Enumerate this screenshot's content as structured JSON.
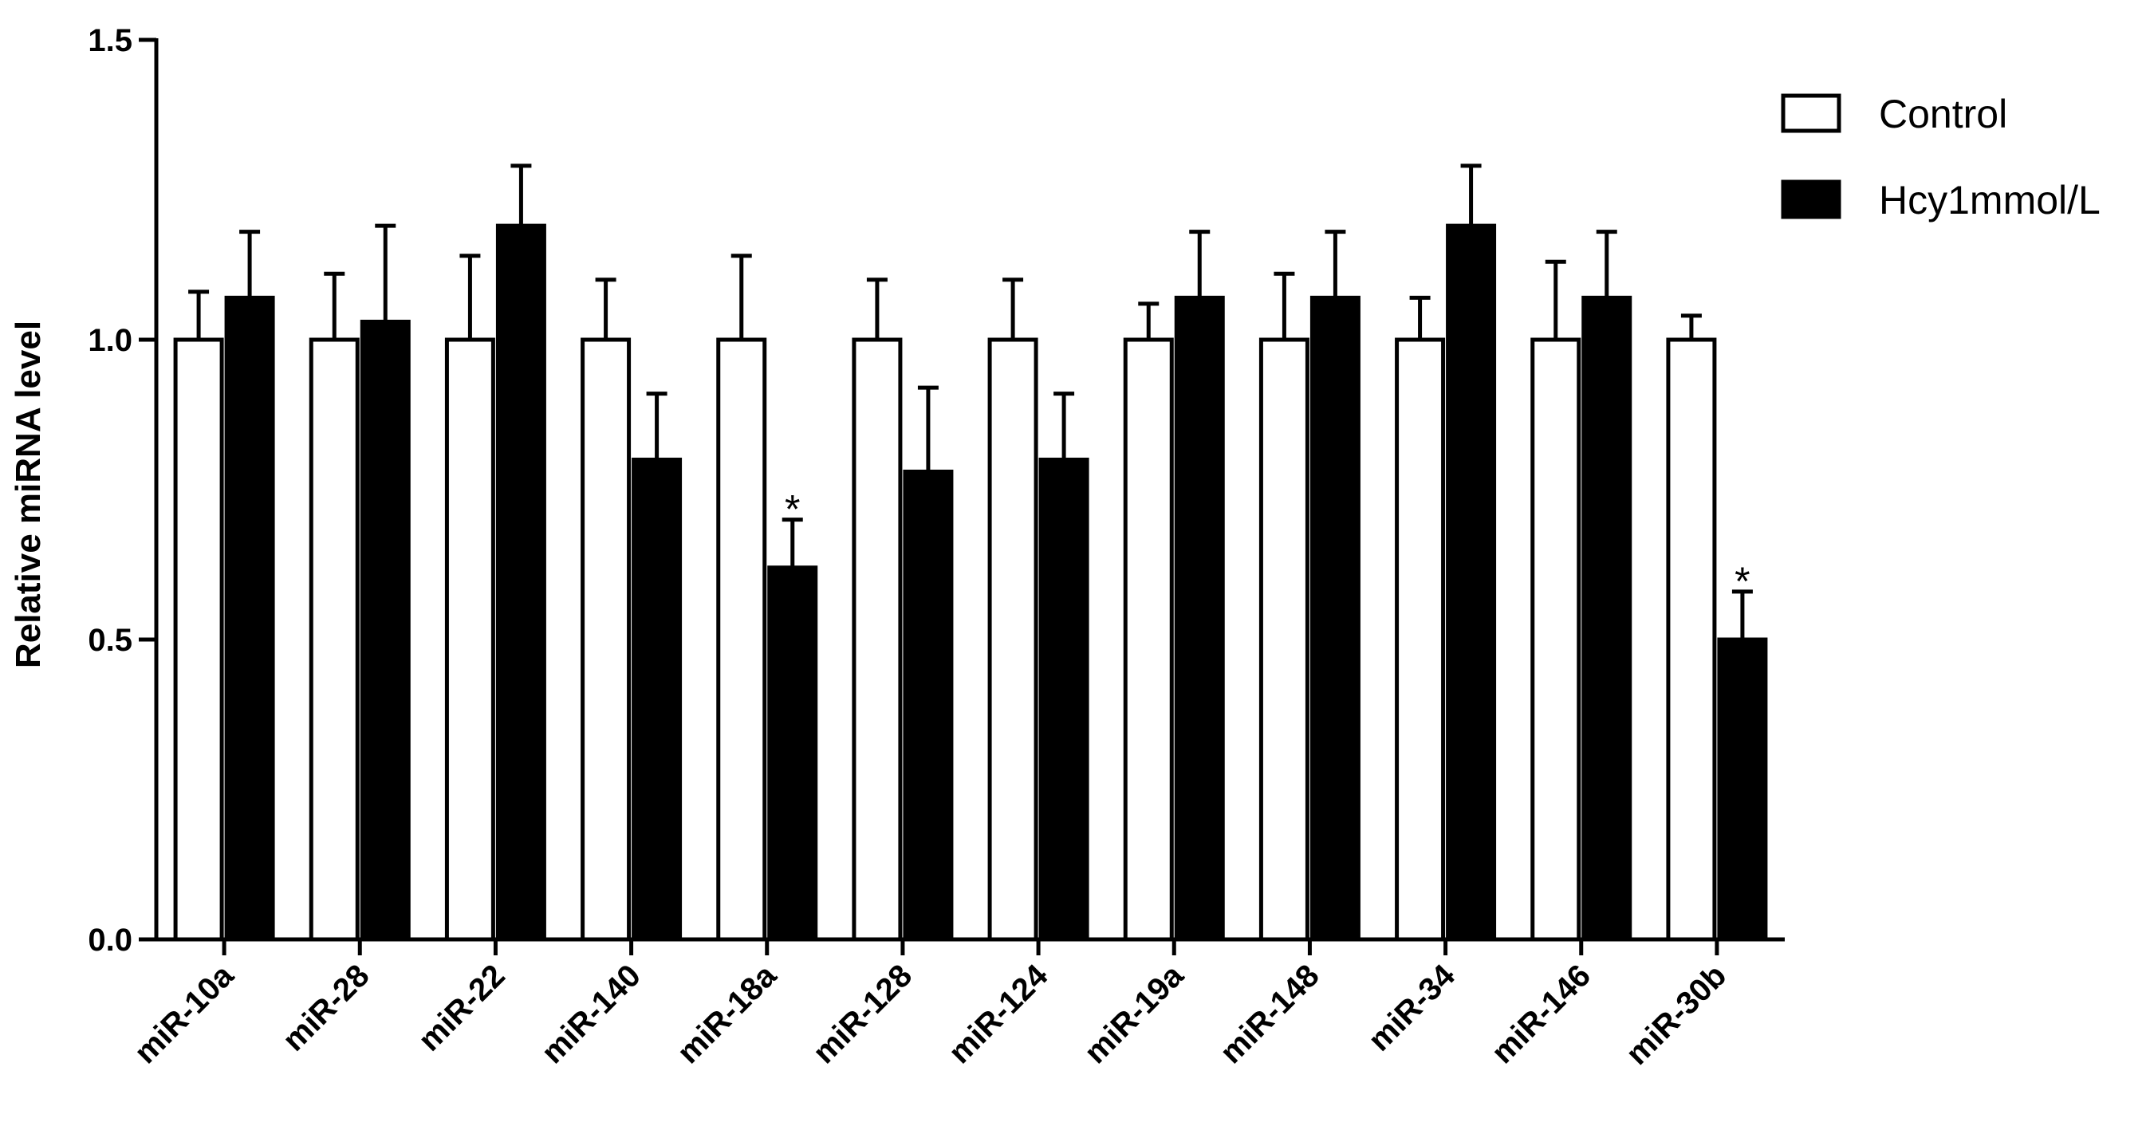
{
  "chart_data": {
    "type": "bar",
    "ylabel": "Relative miRNA level",
    "xlabel": "",
    "ylim": [
      0,
      1.5
    ],
    "yticks": [
      "0.0",
      "0.5",
      "1.0",
      "1.5"
    ],
    "grid": false,
    "legend_position": "top-right",
    "categories": [
      "miR-10a",
      "miR-28",
      "miR-22",
      "miR-140",
      "miR-18a",
      "miR-128",
      "miR-124",
      "miR-19a",
      "miR-148",
      "miR-34",
      "miR-146",
      "miR-30b"
    ],
    "series": [
      {
        "name": "Control",
        "color": "#ffffff",
        "values": [
          1.0,
          1.0,
          1.0,
          1.0,
          1.0,
          1.0,
          1.0,
          1.0,
          1.0,
          1.0,
          1.0,
          1.0
        ],
        "error": [
          0.08,
          0.11,
          0.14,
          0.1,
          0.14,
          0.1,
          0.1,
          0.06,
          0.11,
          0.07,
          0.13,
          0.04
        ]
      },
      {
        "name": "Hcy1mmol/L",
        "color": "#000000",
        "values": [
          1.07,
          1.03,
          1.19,
          0.8,
          0.62,
          0.78,
          0.8,
          1.07,
          1.07,
          1.19,
          1.07,
          0.5
        ],
        "error": [
          0.11,
          0.16,
          0.1,
          0.11,
          0.08,
          0.14,
          0.11,
          0.11,
          0.11,
          0.1,
          0.11,
          0.08
        ]
      }
    ],
    "annotations": [
      {
        "category": "miR-18a",
        "series": "Hcy1mmol/L",
        "text": "*"
      },
      {
        "category": "miR-30b",
        "series": "Hcy1mmol/L",
        "text": "*"
      }
    ]
  }
}
